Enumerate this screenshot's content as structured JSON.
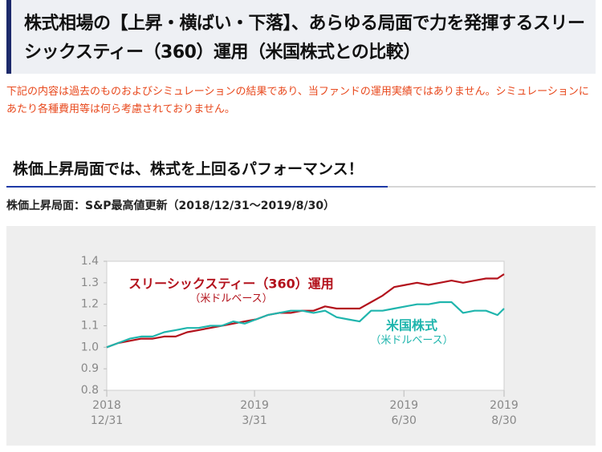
{
  "header": {
    "title": "株式相場の【上昇・横ばい・下落】、あらゆる局面で力を発揮するスリーシックスティー（360）運用（米国株式との比較）"
  },
  "note": "下記の内容は過去のものおよびシミュレーションの結果であり、当ファンドの運用実績ではありません。シミュレーションにあたり各種費用等は何ら考慮されておりません。",
  "section": {
    "title": "株価上昇局面では、株式を上回るパフォーマンス！",
    "caption": "株価上昇局面：S&P最高値更新（2018/12/31〜2019/8/30）"
  },
  "chart_data": {
    "type": "line",
    "x": [
      "2018-12-31",
      "2019-01-07",
      "2019-01-14",
      "2019-01-21",
      "2019-01-28",
      "2019-02-04",
      "2019-02-11",
      "2019-02-18",
      "2019-02-25",
      "2019-03-04",
      "2019-03-11",
      "2019-03-18",
      "2019-03-25",
      "2019-04-01",
      "2019-04-08",
      "2019-04-15",
      "2019-04-22",
      "2019-04-29",
      "2019-05-06",
      "2019-05-13",
      "2019-05-20",
      "2019-05-27",
      "2019-06-03",
      "2019-06-10",
      "2019-06-17",
      "2019-06-24",
      "2019-07-01",
      "2019-07-08",
      "2019-07-15",
      "2019-07-22",
      "2019-07-29",
      "2019-08-05",
      "2019-08-12",
      "2019-08-19",
      "2019-08-26",
      "2019-08-30"
    ],
    "series": [
      {
        "name": "スリーシックスティー（360）運用",
        "name_note": "（米ドルベース）",
        "color": "#b3121c",
        "values": [
          1.0,
          1.02,
          1.03,
          1.04,
          1.04,
          1.05,
          1.05,
          1.07,
          1.08,
          1.09,
          1.1,
          1.11,
          1.12,
          1.13,
          1.15,
          1.16,
          1.16,
          1.17,
          1.17,
          1.19,
          1.18,
          1.18,
          1.18,
          1.21,
          1.24,
          1.28,
          1.29,
          1.3,
          1.29,
          1.3,
          1.31,
          1.3,
          1.31,
          1.32,
          1.32,
          1.34
        ]
      },
      {
        "name": "米国株式",
        "name_note": "（米ドルベース）",
        "color": "#1fb5ad",
        "values": [
          1.0,
          1.02,
          1.04,
          1.05,
          1.05,
          1.07,
          1.08,
          1.09,
          1.09,
          1.1,
          1.1,
          1.12,
          1.11,
          1.13,
          1.15,
          1.16,
          1.17,
          1.17,
          1.16,
          1.17,
          1.14,
          1.13,
          1.12,
          1.17,
          1.17,
          1.18,
          1.19,
          1.2,
          1.2,
          1.21,
          1.21,
          1.16,
          1.17,
          1.17,
          1.15,
          1.18
        ]
      }
    ],
    "xlim": [
      "2018-12-31",
      "2019-08-30"
    ],
    "xticks": [
      {
        "value": "2018-12-31",
        "label": [
          "2018",
          "12/31"
        ]
      },
      {
        "value": "2019-03-31",
        "label": [
          "2019",
          "3/31"
        ]
      },
      {
        "value": "2019-06-30",
        "label": [
          "2019",
          "6/30"
        ]
      },
      {
        "value": "2019-08-30",
        "label": [
          "2019",
          "8/30"
        ]
      }
    ],
    "ylim": [
      0.8,
      1.4
    ],
    "yticks": [
      0.8,
      0.9,
      {
        "value": 1,
        "label": "1.0"
      },
      1.1,
      1.2,
      1.3,
      1.4
    ],
    "grid": false
  }
}
